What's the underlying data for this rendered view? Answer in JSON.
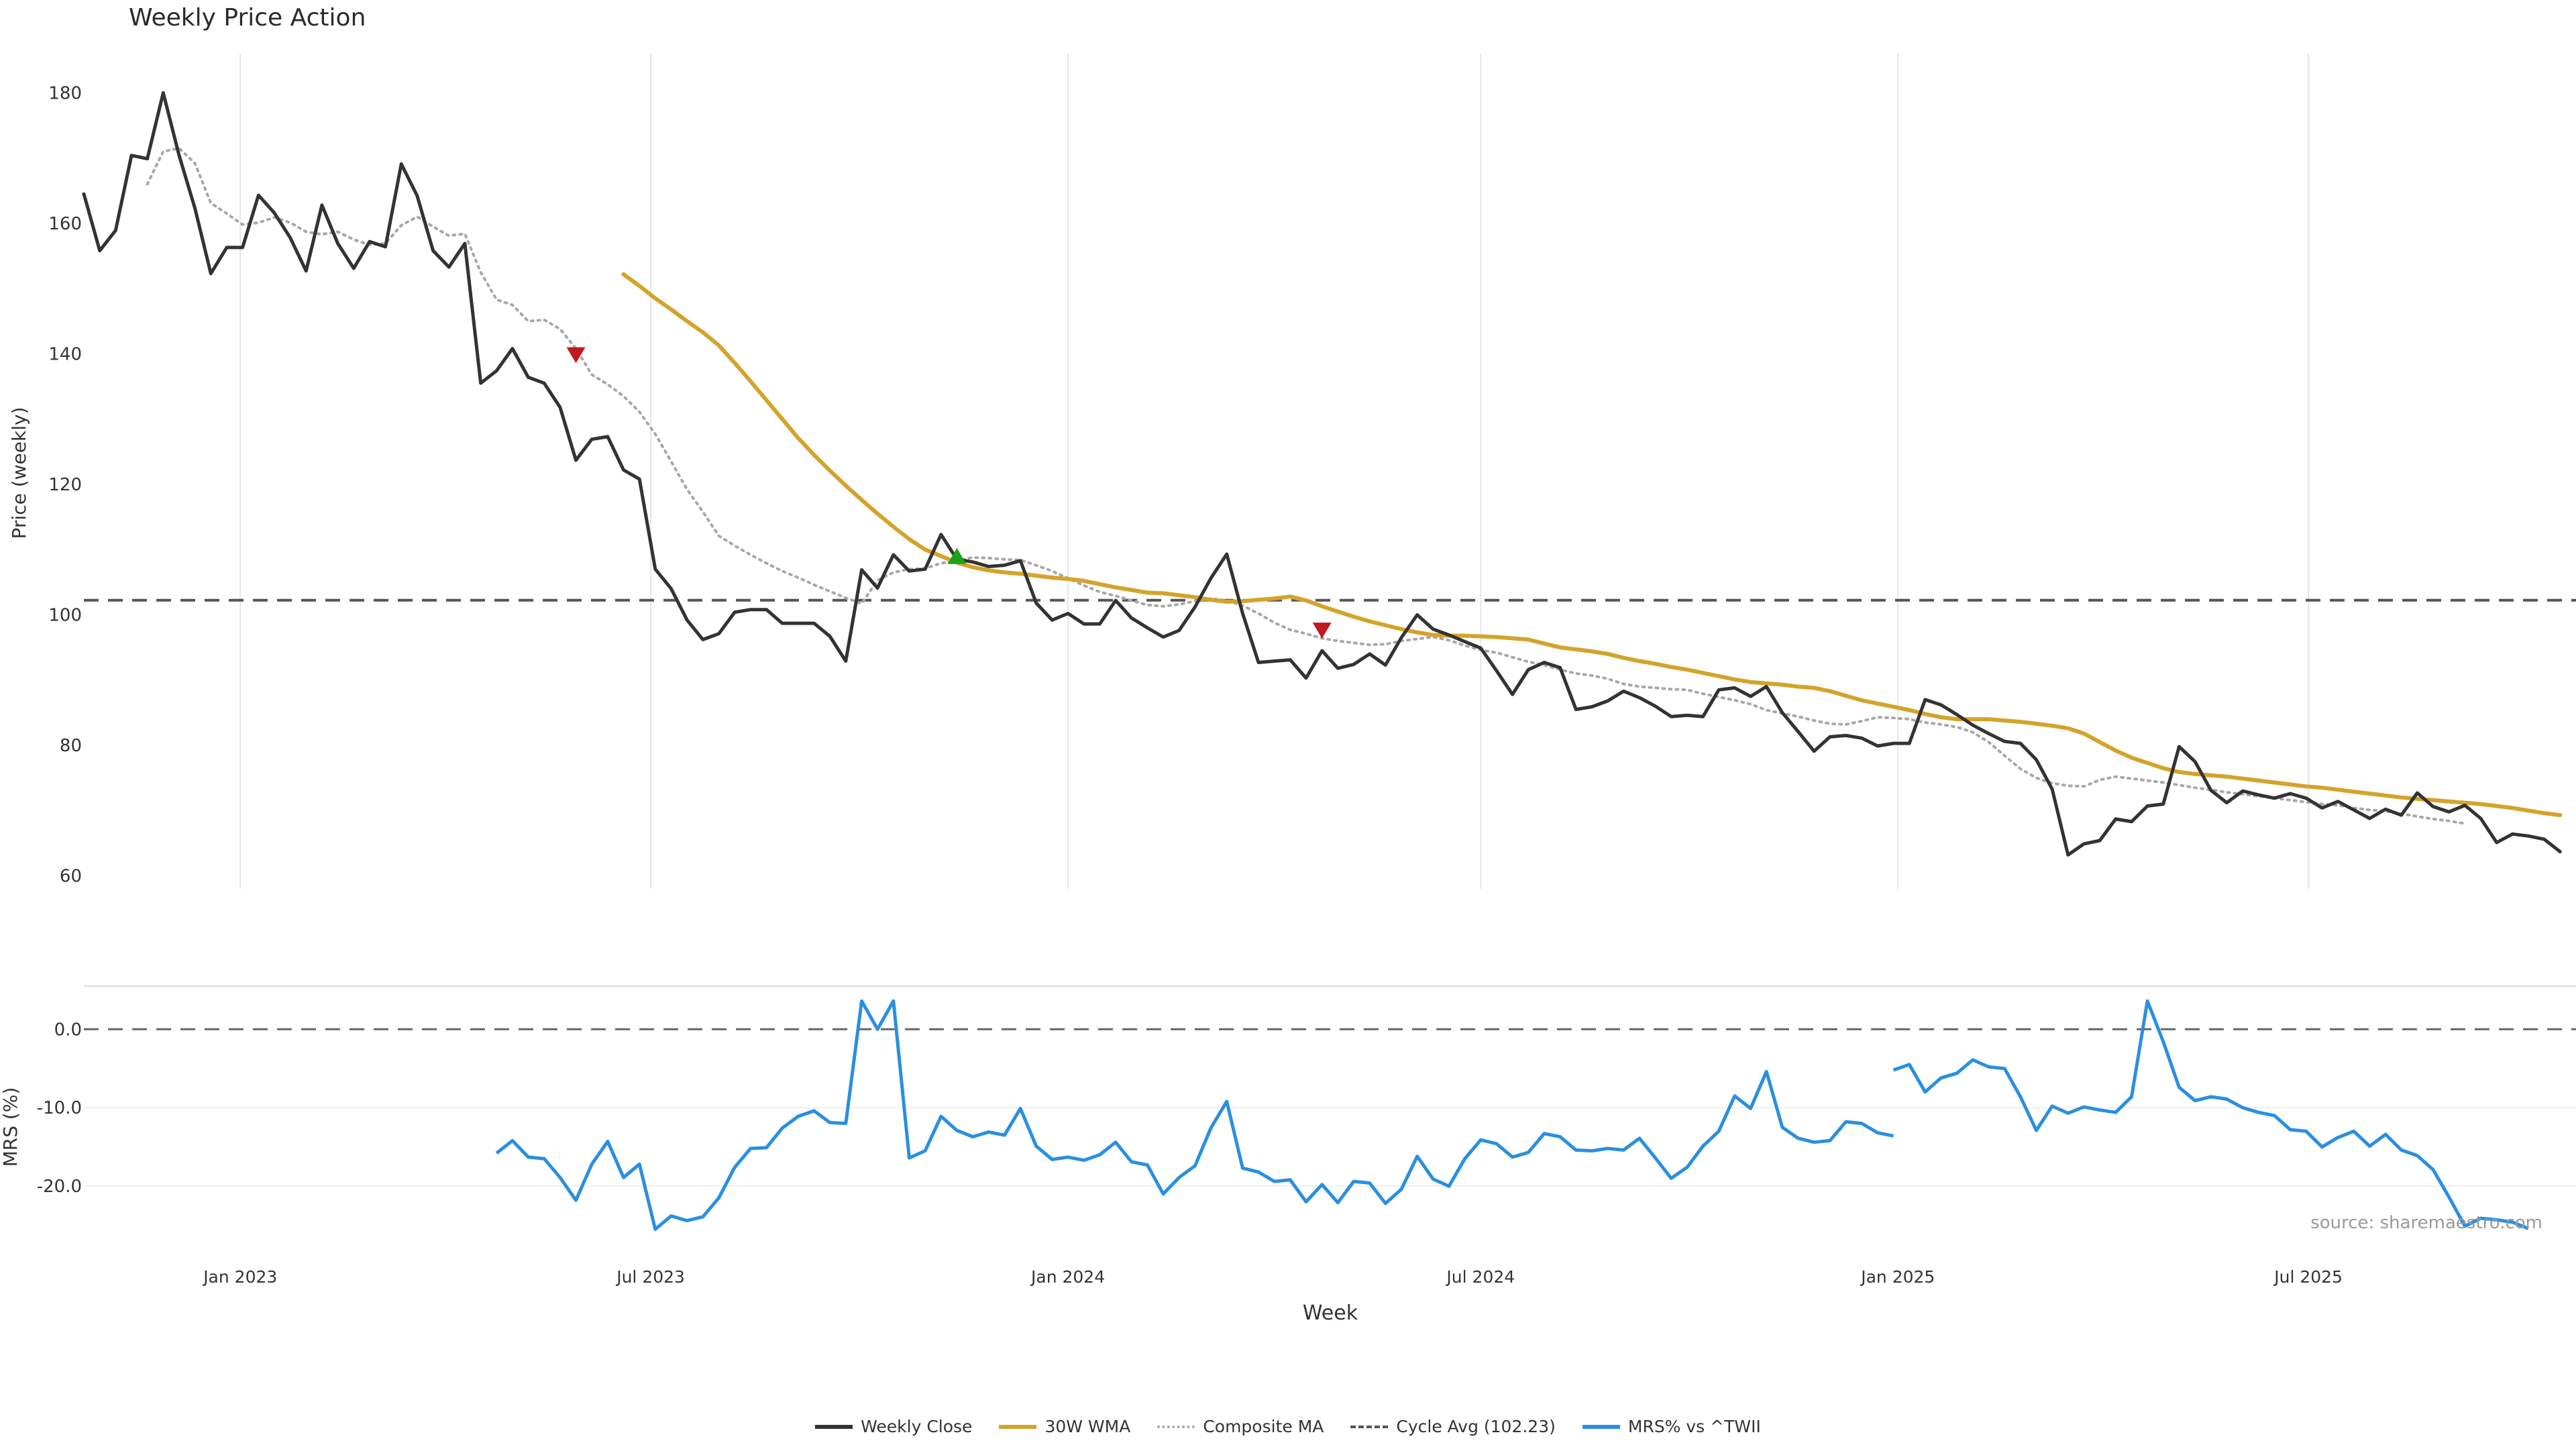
{
  "title": "Weekly Price Action",
  "source": "source: sharemaestro.com",
  "chart_data": {
    "type": "line",
    "xlabel": "Week",
    "x_ticks": [
      "Jan 2023",
      "Jul 2023",
      "Jan 2024",
      "Jul 2024",
      "Jan 2025",
      "Jul 2025"
    ],
    "x_start": "2022-10-24",
    "weeks": 158,
    "price_panel": {
      "ylabel": "Price (weekly)",
      "ylim": [
        58,
        186
      ],
      "yticks": [
        60,
        80,
        100,
        120,
        140,
        160,
        180
      ],
      "series": [
        {
          "name": "Weekly Close",
          "color": "#333333",
          "style": "solid",
          "start": 0,
          "values": [
            164.5,
            155.8,
            158.9,
            170.4,
            169.9,
            180,
            170.4,
            162.3,
            152.3,
            156.3,
            156.3,
            164.3,
            161.6,
            157.8,
            152.7,
            162.8,
            156.9,
            153.1,
            157.2,
            156.4,
            169.1,
            164.2,
            155.8,
            153.3,
            156.9,
            135.5,
            137.4,
            140.8,
            136.4,
            135.5,
            131.8,
            123.7,
            126.9,
            127.3,
            122.2,
            120.8,
            107.0,
            104.0,
            99.2,
            96.2,
            97.1,
            100.4,
            100.8,
            100.8,
            98.7,
            98.7,
            98.7,
            96.7,
            92.9,
            106.9,
            104.1,
            109.2,
            106.7,
            107.0,
            112.3,
            108.5,
            108.1,
            107.4,
            107.6,
            108.3,
            101.8,
            99.2,
            100.2,
            98.6,
            98.6,
            102.2,
            99.5,
            98.0,
            96.6,
            97.6,
            101.2,
            105.6,
            109.3,
            100.2,
            92.7,
            92.9,
            93.1,
            90.3,
            94.5,
            91.8,
            92.4,
            94.0,
            92.3,
            96.5,
            100.0,
            97.8,
            96.9,
            95.9,
            94.9,
            91.4,
            87.8,
            91.6,
            92.7,
            91.9,
            85.5,
            85.9,
            86.8,
            88.3,
            87.3,
            86.0,
            84.4,
            84.6,
            84.4,
            88.5,
            88.8,
            87.5,
            89.0,
            85.0,
            82.1,
            79.1,
            81.3,
            81.5,
            81.1,
            79.9,
            80.3,
            80.3,
            87.0,
            86.2,
            84.7,
            83.1,
            81.8,
            80.6,
            80.3,
            77.8,
            73.3,
            63.2,
            64.9,
            65.4,
            68.7,
            68.3,
            70.7,
            71.0,
            79.8,
            77.5,
            73.1,
            71.2,
            73.0,
            72.4,
            71.9,
            72.6,
            71.9,
            70.4,
            71.4,
            70.1,
            68.8,
            70.2,
            69.3,
            72.7,
            70.6,
            69.8,
            70.8,
            68.8,
            65.1,
            66.4,
            66.1,
            65.6,
            63.7
          ]
        },
        {
          "name": "30W WMA",
          "color": "#D4A32A",
          "style": "solid",
          "start": 34,
          "values": [
            152.2,
            150.4,
            148.5,
            146.8,
            145.0,
            143.3,
            141.3,
            138.6,
            135.8,
            132.9,
            130.0,
            127.1,
            124.5,
            122.1,
            119.8,
            117.6,
            115.5,
            113.5,
            111.6,
            110.0,
            109.0,
            108.0,
            107.3,
            106.8,
            106.5,
            106.3,
            106.0,
            105.7,
            105.5,
            105.2,
            104.7,
            104.2,
            103.8,
            103.4,
            103.3,
            103.0,
            102.7,
            102.3,
            102.0,
            102.1,
            102.3,
            102.5,
            102.8,
            102.2,
            101.3,
            100.5,
            99.7,
            99.0,
            98.4,
            97.8,
            97.3,
            96.9,
            96.8,
            96.8,
            96.7,
            96.6,
            96.4,
            96.2,
            95.6,
            95.0,
            94.7,
            94.4,
            94.0,
            93.4,
            92.9,
            92.5,
            92.0,
            91.6,
            91.1,
            90.6,
            90.1,
            89.7,
            89.5,
            89.3,
            89.0,
            88.8,
            88.3,
            87.6,
            86.9,
            86.4,
            85.9,
            85.4,
            84.8,
            84.3,
            84.0,
            84.0,
            84.0,
            83.8,
            83.6,
            83.3,
            83.0,
            82.6,
            81.8,
            80.5,
            79.2,
            78.1,
            77.3,
            76.5,
            75.9,
            75.6,
            75.4,
            75.2,
            74.9,
            74.6,
            74.3,
            74.0,
            73.7,
            73.5,
            73.2,
            72.9,
            72.6,
            72.3,
            72.0,
            71.8,
            71.6,
            71.4,
            71.2,
            71.0,
            70.7,
            70.4,
            70.0,
            69.6,
            69.3
          ]
        },
        {
          "name": "Composite MA",
          "color": "#a8a8a8",
          "style": "dotted",
          "start": 4,
          "values": [
            166.0,
            171.0,
            171.5,
            169.2,
            163.1,
            161.5,
            159.8,
            160.1,
            160.9,
            160.1,
            158.7,
            158.3,
            158.7,
            157.5,
            156.7,
            156.9,
            159.7,
            161.0,
            159.5,
            158.1,
            158.4,
            152.5,
            148.3,
            147.5,
            145.0,
            145.2,
            143.8,
            140.8,
            136.8,
            135.3,
            133.5,
            131.1,
            127.7,
            123.5,
            119.2,
            115.8,
            112.1,
            110.6,
            109.2,
            107.9,
            106.7,
            105.7,
            104.6,
            103.6,
            102.6,
            101.7,
            105.3,
            106.5,
            107.0,
            107.1,
            107.9,
            108.3,
            108.8,
            108.7,
            108.5,
            108.4,
            107.6,
            106.7,
            105.6,
            104.5,
            103.5,
            102.9,
            102.2,
            101.5,
            101.3,
            101.6,
            102.1,
            102.5,
            102.2,
            101.4,
            100.2,
            98.8,
            97.7,
            97.1,
            96.4,
            96.0,
            95.7,
            95.4,
            95.5,
            96.0,
            96.3,
            96.6,
            96.1,
            95.3,
            94.6,
            94.2,
            93.5,
            92.8,
            92.3,
            91.6,
            91.0,
            90.7,
            90.2,
            89.4,
            89.0,
            88.8,
            88.6,
            88.5,
            87.9,
            87.4,
            86.9,
            86.3,
            85.4,
            84.9,
            84.4,
            83.8,
            83.3,
            83.2,
            83.7,
            84.3,
            84.2,
            84.0,
            83.5,
            83.2,
            82.8,
            82.0,
            80.5,
            78.4,
            76.4,
            75.0,
            74.2,
            73.8,
            73.7,
            74.7,
            75.2,
            74.9,
            74.6,
            74.3,
            73.9,
            73.5,
            73.2,
            72.8,
            72.5,
            72.2,
            71.9,
            71.6,
            71.3,
            71.0,
            70.8,
            70.4,
            70.1,
            69.9,
            69.5,
            69.1,
            68.7,
            68.4,
            68.0
          ]
        },
        {
          "name": "Cycle Avg (102.23)",
          "color": "#555555",
          "style": "dashed",
          "constant": 102.23
        }
      ],
      "markers": [
        {
          "type": "down-triangle",
          "color": "#C0191E",
          "week": 31,
          "value": 140
        },
        {
          "type": "up-triangle",
          "color": "#18A31A",
          "week": 55,
          "value": 108.8
        },
        {
          "type": "down-triangle",
          "color": "#C0191E",
          "week": 78,
          "value": 97.8
        }
      ]
    },
    "mrs_panel": {
      "ylabel": "MRS (%)",
      "ylim": [
        -27,
        5.5
      ],
      "yticks": [
        0,
        -10,
        -20
      ],
      "ytick_labels": [
        "0.0",
        "-10.0",
        "-20.0"
      ],
      "zero_line": 0,
      "series": [
        {
          "name": "MRS% vs ^TWII",
          "color": "#2A8FE0",
          "segments": [
            {
              "start": 26,
              "values": [
                -15.8,
                -14.2,
                -16.3,
                -16.5,
                -18.9,
                -21.8,
                -17.2,
                -14.3,
                -18.9,
                -17.2,
                -25.5,
                -23.8,
                -24.4,
                -23.9,
                -21.5,
                -17.6,
                -15.2,
                -15.1,
                -12.6,
                -11.1,
                -10.4,
                -11.9,
                -12.0,
                3.6,
                0.0,
                3.6,
                -16.4,
                -15.5,
                -11.1,
                -12.9,
                -13.7,
                -13.1,
                -13.5,
                -10.1,
                -14.9,
                -16.6,
                -16.3,
                -16.7,
                -16.0,
                -14.4,
                -16.9,
                -17.3,
                -21.0,
                -18.9,
                -17.4,
                -12.6,
                -9.2,
                -17.7,
                -18.2,
                -19.4,
                -19.2,
                -22.0,
                -19.8,
                -22.1,
                -19.4,
                -19.6,
                -22.2,
                -20.4,
                -16.2,
                -19.1,
                -20.0,
                -16.5,
                -14.1,
                -14.6,
                -16.3,
                -15.7,
                -13.3,
                -13.7,
                -15.4,
                -15.5,
                -15.2,
                -15.4,
                -13.9,
                -16.4,
                -19.0,
                -17.6,
                -14.9,
                -13.0,
                -8.5,
                -10.1,
                -5.4,
                -12.5,
                -13.9,
                -14.4,
                -14.2,
                -11.8,
                -12.0,
                -13.2,
                -13.6
              ]
            },
            {
              "start": 114,
              "values": [
                -5.2,
                -4.5,
                -8.0,
                -6.2,
                -5.6,
                -3.9,
                -4.8,
                -5.0,
                -8.6,
                -12.9,
                -9.8,
                -10.7,
                -9.9,
                -10.3,
                -10.6,
                -8.6,
                3.6,
                -1.6,
                -7.4,
                -9.1,
                -8.6,
                -8.9,
                -10.0,
                -10.6,
                -11.0,
                -12.8,
                -13.0,
                -15.0,
                -13.8,
                -13.0,
                -14.9,
                -13.4,
                -15.4,
                -16.1,
                -17.9,
                -21.4,
                -25.1,
                -24.1,
                -24.3,
                -24.6,
                -25.4
              ]
            }
          ]
        }
      ]
    },
    "legend": [
      {
        "name": "Weekly Close",
        "color": "#333333",
        "style": "solid"
      },
      {
        "name": "30W WMA",
        "color": "#D4A32A",
        "style": "solid"
      },
      {
        "name": "Composite MA",
        "color": "#a8a8a8",
        "style": "dotted"
      },
      {
        "name": "Cycle Avg (102.23)",
        "color": "#555555",
        "style": "dashed"
      },
      {
        "name": "MRS% vs ^TWII",
        "color": "#2A8FE0",
        "style": "solid"
      }
    ],
    "legend_position": "bottom-center",
    "grid": true
  }
}
